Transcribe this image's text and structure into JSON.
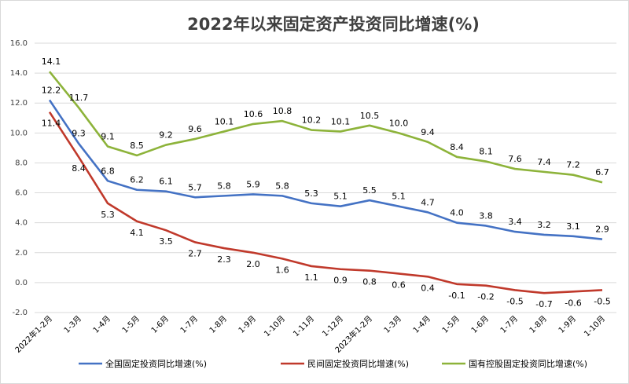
{
  "chart_data": {
    "type": "line",
    "title": "2022年以来固定资产投资同比增速(%)",
    "xlabel": "",
    "ylabel": "",
    "ylim": [
      -2.0,
      16.0
    ],
    "yticks": [
      "-2.0",
      "0.0",
      "2.0",
      "4.0",
      "6.0",
      "8.0",
      "10.0",
      "12.0",
      "14.0",
      "16.0"
    ],
    "grid": true,
    "legend_position": "bottom",
    "categories": [
      "2022年1-2月",
      "1-3月",
      "1-4月",
      "1-5月",
      "1-6月",
      "1-7月",
      "1-8月",
      "1-9月",
      "1-10月",
      "1-11月",
      "1-12月",
      "2023年1-2月",
      "1-3月",
      "1-4月",
      "1-5月",
      "1-6月",
      "1-7月",
      "1-8月",
      "1-9月",
      "1-10月"
    ],
    "series": [
      {
        "name": "全国固定投资同比增速(%)",
        "color": "#4472c4",
        "values": [
          12.2,
          9.3,
          6.8,
          6.2,
          6.1,
          5.7,
          5.8,
          5.9,
          5.8,
          5.3,
          5.1,
          5.5,
          5.1,
          4.7,
          4.0,
          3.8,
          3.4,
          3.2,
          3.1,
          2.9
        ],
        "labels": [
          "12.2",
          "9.3",
          "6.8",
          "6.2",
          "6.1",
          "5.7",
          "5.8",
          "5.9",
          "5.8",
          "5.3",
          "5.1",
          "5.5",
          "5.1",
          "4.7",
          "4.0",
          "3.8",
          "3.4",
          "3.2",
          "3.1",
          "2.9"
        ]
      },
      {
        "name": "民间固定投资同比增速(%)",
        "color": "#c0392b",
        "values": [
          11.4,
          8.4,
          5.3,
          4.1,
          3.5,
          2.7,
          2.3,
          2.0,
          1.6,
          1.1,
          0.9,
          0.8,
          0.6,
          0.4,
          -0.1,
          -0.2,
          -0.5,
          -0.7,
          -0.6,
          -0.5
        ],
        "labels": [
          "11.4",
          "8.4",
          "5.3",
          "4.1",
          "3.5",
          "2.7",
          "2.3",
          "2.0",
          "1.6",
          "1.1",
          "0.9",
          "0.8",
          "0.6",
          "0.4",
          "-0.1",
          "-0.2",
          "-0.5",
          "-0.7",
          "-0.6",
          "-0.5"
        ]
      },
      {
        "name": "国有控股固定投资同比增速(%)",
        "color": "#8db33a",
        "values": [
          14.1,
          11.7,
          9.1,
          8.5,
          9.2,
          9.6,
          10.1,
          10.6,
          10.8,
          10.2,
          10.1,
          10.5,
          10.0,
          9.4,
          8.4,
          8.1,
          7.6,
          7.4,
          7.2,
          6.7
        ],
        "labels": [
          "14.1",
          "11.7",
          "9.1",
          "8.5",
          "9.2",
          "9.6",
          "10.1",
          "10.6",
          "10.8",
          "10.2",
          "10.1",
          "10.5",
          "10.0",
          "9.4",
          "8.4",
          "8.1",
          "7.6",
          "7.4",
          "7.2",
          "6.7"
        ]
      }
    ]
  }
}
